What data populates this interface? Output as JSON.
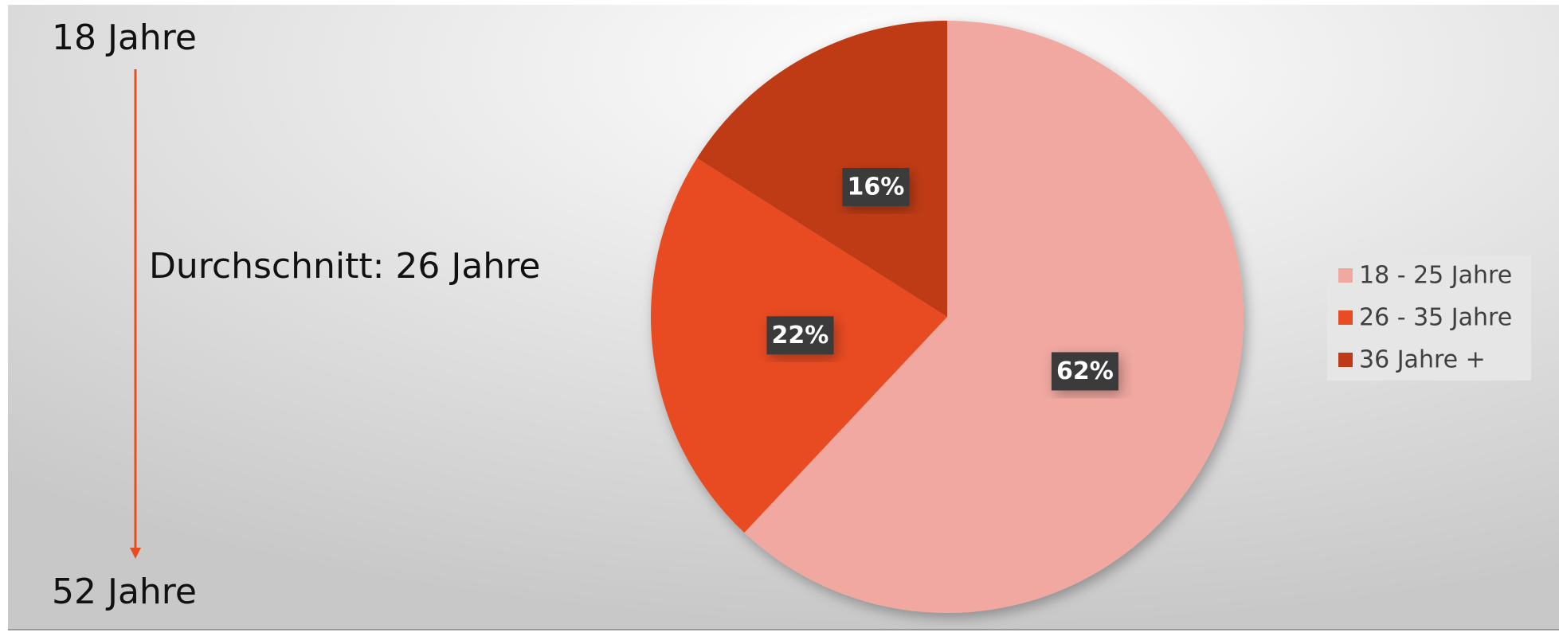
{
  "chart_data": {
    "type": "pie",
    "categories": [
      "18 - 25 Jahre",
      "26 - 35 Jahre",
      "36 Jahre +"
    ],
    "values": [
      62,
      22,
      16
    ],
    "value_labels": [
      "62%",
      "22%",
      "16%"
    ],
    "colors": [
      "#f0a8a0",
      "#e84c22",
      "#bf3b17"
    ],
    "annotations": [
      "18 Jahre",
      "Durchschnitt: 26 Jahre",
      "52 Jahre"
    ],
    "legend": "right"
  }
}
